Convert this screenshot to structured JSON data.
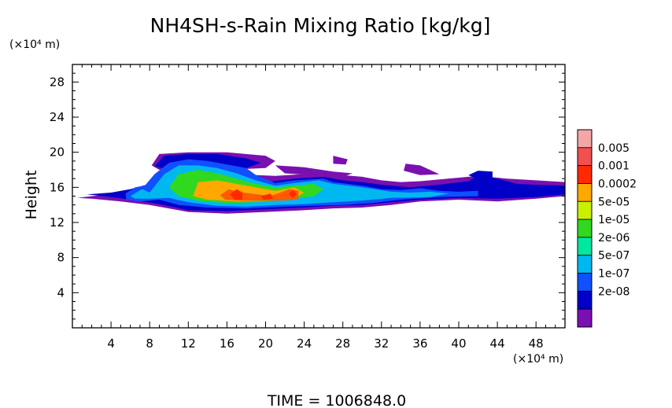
{
  "chart_data": {
    "type": "heatmap",
    "title": "NH4SH-s-Rain Mixing Ratio [kg/kg]",
    "ylabel": "Height",
    "y_unit": "(×10⁴ m)",
    "x_unit": "(×10⁴ m)",
    "xlim": [
      0,
      51
    ],
    "ylim": [
      0,
      30
    ],
    "x_ticks": [
      4,
      8,
      12,
      16,
      20,
      24,
      28,
      32,
      36,
      40,
      44,
      48
    ],
    "y_ticks": [
      4,
      8,
      12,
      16,
      20,
      24,
      28
    ],
    "grid": false,
    "legend": {
      "placement": "right",
      "labels": [
        "0.005",
        "0.001",
        "0.0002",
        "5e-05",
        "1e-05",
        "2e-06",
        "5e-07",
        "1e-07",
        "2e-08"
      ],
      "colors": [
        "#f4a6a6",
        "#f05050",
        "#ff2a00",
        "#ffa800",
        "#c8f000",
        "#30d820",
        "#00e8a0",
        "#00b8f0",
        "#1050ff",
        "#0000c8",
        "#7a10b0"
      ]
    },
    "regions": [
      {
        "level": 0,
        "points": [
          [
            0.5,
            14.8
          ],
          [
            2,
            15
          ],
          [
            4,
            15.2
          ],
          [
            6,
            15.6
          ],
          [
            8,
            16.2
          ],
          [
            12,
            17
          ],
          [
            17,
            17.5
          ],
          [
            21,
            17.3
          ],
          [
            25,
            17.6
          ],
          [
            28,
            17.4
          ],
          [
            30,
            17.2
          ],
          [
            32,
            16.8
          ],
          [
            34,
            16.6
          ],
          [
            36,
            16.7
          ],
          [
            38,
            16.9
          ],
          [
            40,
            17.1
          ],
          [
            42,
            17.3
          ],
          [
            45,
            17.0
          ],
          [
            48,
            16.8
          ],
          [
            51,
            16.6
          ],
          [
            51,
            15.0
          ],
          [
            48,
            14.7
          ],
          [
            44,
            14.4
          ],
          [
            40,
            14.6
          ],
          [
            36,
            14.4
          ],
          [
            33,
            14.0
          ],
          [
            30,
            13.7
          ],
          [
            27,
            13.6
          ],
          [
            24,
            13.4
          ],
          [
            20,
            13.2
          ],
          [
            16,
            13.0
          ],
          [
            12,
            13.2
          ],
          [
            8,
            14.0
          ],
          [
            5,
            14.4
          ],
          [
            2,
            14.7
          ]
        ]
      },
      {
        "level": 0,
        "points": [
          [
            8.2,
            18.5
          ],
          [
            9,
            19.8
          ],
          [
            12,
            20.0
          ],
          [
            16,
            20.0
          ],
          [
            20,
            19.6
          ],
          [
            21,
            19.0
          ],
          [
            20,
            18.2
          ],
          [
            16,
            18.0
          ],
          [
            12,
            18.0
          ],
          [
            9,
            18.0
          ]
        ]
      },
      {
        "level": 0,
        "points": [
          [
            21,
            18.5
          ],
          [
            24,
            18.3
          ],
          [
            27,
            17.8
          ],
          [
            29,
            17.6
          ],
          [
            28,
            17.2
          ],
          [
            25,
            17.4
          ],
          [
            22,
            17.6
          ]
        ]
      },
      {
        "level": 0,
        "points": [
          [
            34.5,
            18.7
          ],
          [
            36,
            18.5
          ],
          [
            38,
            17.5
          ],
          [
            36,
            17.4
          ],
          [
            34.3,
            17.9
          ]
        ]
      },
      {
        "level": 0,
        "points": [
          [
            27,
            19.6
          ],
          [
            28.5,
            19.2
          ],
          [
            28.3,
            18.6
          ],
          [
            27,
            18.7
          ]
        ]
      },
      {
        "level": 1,
        "points": [
          [
            1.5,
            15.2
          ],
          [
            4,
            15.4
          ],
          [
            6,
            15.8
          ],
          [
            8,
            16.4
          ],
          [
            10,
            17.3
          ],
          [
            12,
            17.0
          ],
          [
            14,
            16.8
          ],
          [
            16,
            17.0
          ],
          [
            18,
            17.1
          ],
          [
            20,
            16.6
          ],
          [
            23,
            17.0
          ],
          [
            26,
            17.2
          ],
          [
            28,
            16.8
          ],
          [
            30,
            16.6
          ],
          [
            32,
            16.3
          ],
          [
            35,
            16.0
          ],
          [
            38,
            16.3
          ],
          [
            41,
            16.7
          ],
          [
            42,
            17.4
          ],
          [
            44,
            17.0
          ],
          [
            46,
            16.4
          ],
          [
            48,
            16.3
          ],
          [
            51,
            16.2
          ],
          [
            51,
            15.2
          ],
          [
            48,
            14.9
          ],
          [
            44,
            14.7
          ],
          [
            40,
            14.8
          ],
          [
            36,
            14.6
          ],
          [
            33,
            14.3
          ],
          [
            30,
            14.0
          ],
          [
            27,
            13.9
          ],
          [
            24,
            13.7
          ],
          [
            20,
            13.5
          ],
          [
            16,
            13.3
          ],
          [
            12,
            13.4
          ],
          [
            9,
            14.1
          ],
          [
            6,
            14.6
          ],
          [
            4,
            14.9
          ]
        ]
      },
      {
        "level": 1,
        "points": [
          [
            8.5,
            18.4
          ],
          [
            9.5,
            19.6
          ],
          [
            12,
            19.8
          ],
          [
            15,
            19.8
          ],
          [
            18,
            19.3
          ],
          [
            19.5,
            18.8
          ],
          [
            18,
            18.2
          ],
          [
            14,
            18.0
          ],
          [
            10,
            18.0
          ]
        ]
      },
      {
        "level": 1,
        "points": [
          [
            41,
            17.4
          ],
          [
            42,
            17.9
          ],
          [
            43.5,
            17.8
          ],
          [
            43.5,
            17.0
          ],
          [
            42,
            16.9
          ]
        ]
      },
      {
        "level": 2,
        "points": [
          [
            5.5,
            15.3
          ],
          [
            6.5,
            16.0
          ],
          [
            7.5,
            16.2
          ],
          [
            8.5,
            17.5
          ],
          [
            10,
            18.8
          ],
          [
            12,
            19.2
          ],
          [
            14,
            19.0
          ],
          [
            16,
            18.6
          ],
          [
            18,
            18.2
          ],
          [
            19,
            17.4
          ],
          [
            21,
            16.5
          ],
          [
            23,
            16.8
          ],
          [
            26,
            17.0
          ],
          [
            27,
            16.6
          ],
          [
            30,
            16.2
          ],
          [
            32,
            15.8
          ],
          [
            34,
            15.7
          ],
          [
            36,
            15.9
          ],
          [
            38,
            15.6
          ],
          [
            40,
            15.5
          ],
          [
            42,
            15.6
          ],
          [
            42,
            15.0
          ],
          [
            38,
            14.9
          ],
          [
            34,
            14.6
          ],
          [
            31,
            14.2
          ],
          [
            28,
            14.0
          ],
          [
            25,
            13.9
          ],
          [
            22,
            13.8
          ],
          [
            18,
            13.6
          ],
          [
            14,
            13.7
          ],
          [
            11,
            14.0
          ],
          [
            9,
            14.6
          ],
          [
            7,
            14.4
          ],
          [
            5.6,
            14.6
          ]
        ]
      },
      {
        "level": 3,
        "points": [
          [
            6,
            15.0
          ],
          [
            7.2,
            15.8
          ],
          [
            8,
            15.4
          ],
          [
            9.5,
            17.5
          ],
          [
            11,
            18.5
          ],
          [
            13,
            18.5
          ],
          [
            15,
            18.2
          ],
          [
            17,
            17.6
          ],
          [
            19,
            16.8
          ],
          [
            21,
            16.2
          ],
          [
            23,
            16.5
          ],
          [
            25.5,
            16.8
          ],
          [
            27,
            16.4
          ],
          [
            30,
            16.0
          ],
          [
            33,
            15.5
          ],
          [
            35,
            15.4
          ],
          [
            37,
            15.5
          ],
          [
            39,
            15.3
          ],
          [
            37,
            14.9
          ],
          [
            33,
            14.8
          ],
          [
            30,
            14.5
          ],
          [
            27,
            14.3
          ],
          [
            24,
            14.1
          ],
          [
            21,
            14.0
          ],
          [
            18,
            13.8
          ],
          [
            15,
            13.9
          ],
          [
            12,
            14.3
          ],
          [
            10,
            14.8
          ],
          [
            8,
            14.7
          ],
          [
            6.5,
            14.7
          ]
        ]
      },
      {
        "level": 4,
        "points": [
          [
            10,
            16.0
          ],
          [
            11,
            17.5
          ],
          [
            13,
            18.0
          ],
          [
            15,
            17.6
          ],
          [
            17,
            17.0
          ],
          [
            19,
            16.4
          ],
          [
            21,
            16.0
          ],
          [
            23,
            16.2
          ],
          [
            25,
            16.4
          ],
          [
            26,
            15.8
          ],
          [
            25,
            15.0
          ],
          [
            22,
            14.6
          ],
          [
            19,
            14.3
          ],
          [
            16,
            14.2
          ],
          [
            13,
            14.5
          ],
          [
            11,
            15.0
          ]
        ]
      },
      {
        "level": 5,
        "points": [
          [
            12.5,
            15.0
          ],
          [
            13,
            16.6
          ],
          [
            15,
            16.8
          ],
          [
            17,
            16.4
          ],
          [
            19,
            16.0
          ],
          [
            21,
            15.6
          ],
          [
            23,
            16.0
          ],
          [
            24,
            15.4
          ],
          [
            23,
            14.8
          ],
          [
            20,
            14.5
          ],
          [
            17,
            14.4
          ],
          [
            14,
            14.6
          ]
        ]
      },
      {
        "level": 6,
        "points": [
          [
            15.3,
            15.1
          ],
          [
            16.2,
            15.8
          ],
          [
            17,
            15.5
          ],
          [
            18.5,
            15.3
          ],
          [
            20.5,
            15.0
          ],
          [
            22.5,
            15.8
          ],
          [
            23.4,
            15.6
          ],
          [
            23.4,
            14.6
          ],
          [
            21.5,
            14.5
          ],
          [
            19.5,
            14.5
          ],
          [
            17.5,
            14.5
          ],
          [
            15.8,
            14.6
          ]
        ]
      },
      {
        "level": 7,
        "points": [
          [
            16.3,
            15.2
          ],
          [
            17,
            15.8
          ],
          [
            17.6,
            15.4
          ],
          [
            17.6,
            14.6
          ],
          [
            16.8,
            14.6
          ]
        ]
      },
      {
        "level": 7,
        "points": [
          [
            19.5,
            15.0
          ],
          [
            20.5,
            15.3
          ],
          [
            20.8,
            14.7
          ],
          [
            19.8,
            14.6
          ]
        ]
      },
      {
        "level": 7,
        "points": [
          [
            22.4,
            15.3
          ],
          [
            22.9,
            15.7
          ],
          [
            23.2,
            15.2
          ],
          [
            22.8,
            14.8
          ]
        ]
      }
    ]
  },
  "footer": {
    "time_label": "TIME = 1006848.0"
  }
}
